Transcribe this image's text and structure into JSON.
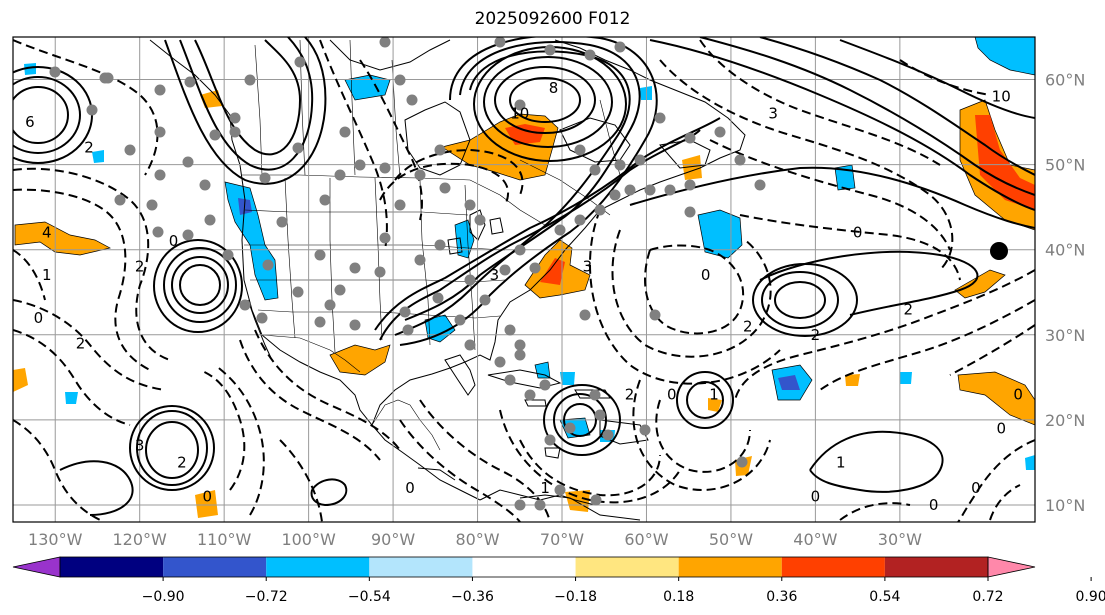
{
  "title": "2025092600 F012",
  "map": {
    "extent": {
      "lon_min": -135,
      "lon_max": -14,
      "lat_min": 8,
      "lat_max": 65
    },
    "lon_ticks": [
      -130,
      -120,
      -110,
      -100,
      -90,
      -80,
      -70,
      -60,
      -50,
      -40,
      -30
    ],
    "lon_labels": [
      "130°W",
      "120°W",
      "110°W",
      "100°W",
      "90°W",
      "80°W",
      "70°W",
      "60°W",
      "50°W",
      "40°W",
      "30°W"
    ],
    "lat_ticks": [
      10,
      20,
      30,
      40,
      50,
      60
    ],
    "lat_labels": [
      "10°N",
      "20°N",
      "30°N",
      "40°N",
      "50°N",
      "60°N"
    ],
    "grid": true,
    "contour_labels": [
      {
        "text": "8",
        "lon": -71,
        "lat": 59
      },
      {
        "text": "10",
        "lon": -75,
        "lat": 56
      },
      {
        "text": "10",
        "lon": -18,
        "lat": 58
      },
      {
        "text": "6",
        "lon": -133,
        "lat": 55
      },
      {
        "text": "2",
        "lon": -126,
        "lat": 52
      },
      {
        "text": "3",
        "lon": -45,
        "lat": 56
      },
      {
        "text": "4",
        "lon": -131,
        "lat": 42
      },
      {
        "text": "1",
        "lon": -131,
        "lat": 37
      },
      {
        "text": "2",
        "lon": -120,
        "lat": 38
      },
      {
        "text": "0",
        "lon": -116,
        "lat": 41
      },
      {
        "text": "0",
        "lon": -132,
        "lat": 32
      },
      {
        "text": "2",
        "lon": -127,
        "lat": 29
      },
      {
        "text": "0",
        "lon": -53,
        "lat": 37
      },
      {
        "text": "0",
        "lon": -35,
        "lat": 42
      },
      {
        "text": "2",
        "lon": -48,
        "lat": 31
      },
      {
        "text": "2",
        "lon": -40,
        "lat": 30
      },
      {
        "text": "2",
        "lon": -29,
        "lat": 33
      },
      {
        "text": "3",
        "lon": -67,
        "lat": 38
      },
      {
        "text": "3",
        "lon": -78,
        "lat": 37
      },
      {
        "text": "2",
        "lon": -62,
        "lat": 23
      },
      {
        "text": "0",
        "lon": -57,
        "lat": 23
      },
      {
        "text": "1",
        "lon": -52,
        "lat": 23
      },
      {
        "text": "3",
        "lon": -120,
        "lat": 17
      },
      {
        "text": "0",
        "lon": -112,
        "lat": 11
      },
      {
        "text": "2",
        "lon": -115,
        "lat": 15
      },
      {
        "text": "0",
        "lon": -88,
        "lat": 12
      },
      {
        "text": "1",
        "lon": -72,
        "lat": 12
      },
      {
        "text": "1",
        "lon": -37,
        "lat": 15
      },
      {
        "text": "0",
        "lon": -40,
        "lat": 11
      },
      {
        "text": "0",
        "lon": -26,
        "lat": 10
      },
      {
        "text": "0",
        "lon": -21,
        "lat": 12
      },
      {
        "text": "0",
        "lon": -18,
        "lat": 19
      },
      {
        "text": "0",
        "lon": -16,
        "lat": 23
      }
    ]
  },
  "colorbar": {
    "ticks": [
      "−0.90",
      "−0.72",
      "−0.54",
      "−0.36",
      "−0.18",
      "0.18",
      "0.36",
      "0.54",
      "0.72",
      "0.90"
    ],
    "colors": [
      "#9933cc",
      "#000080",
      "#3355cc",
      "#00bfff",
      "#b3e5fc",
      "#ffffff",
      "#ffe680",
      "#ffa500",
      "#ff4000",
      "#b22222",
      "#ff88aa"
    ]
  }
}
